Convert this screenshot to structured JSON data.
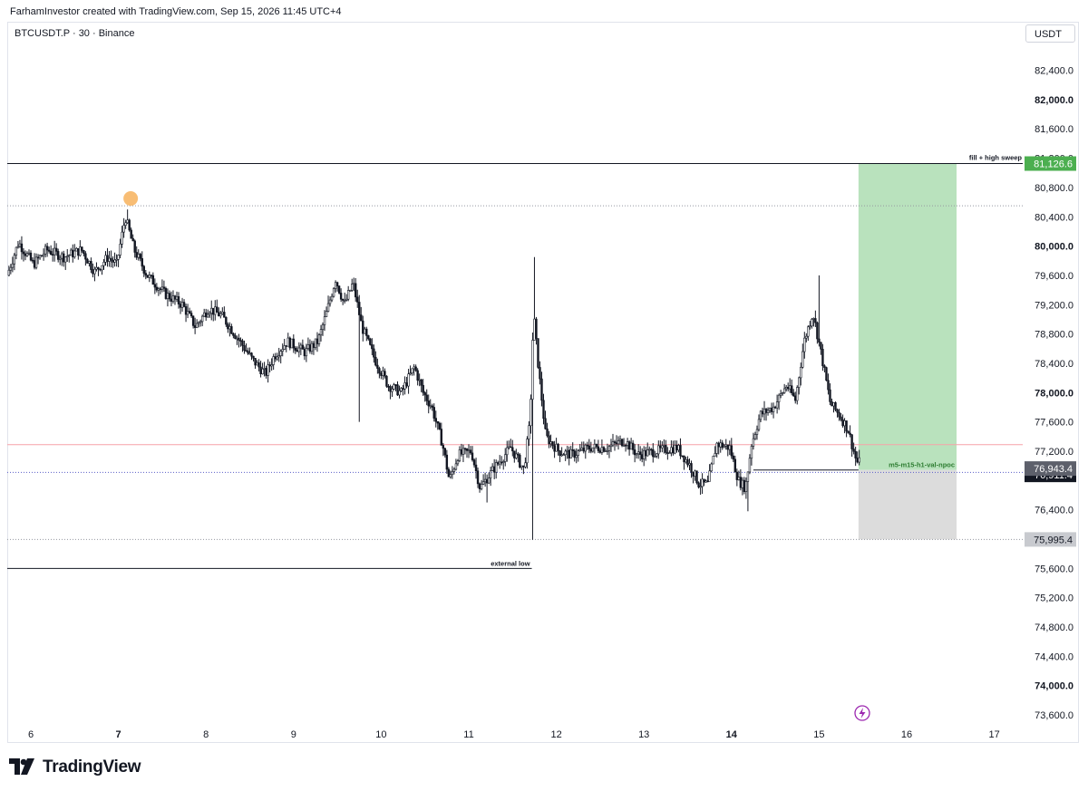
{
  "header": {
    "title": "FarhamInvestor created with TradingView.com, Sep 15, 2026 11:45 UTC+4"
  },
  "symbol": {
    "label": "BTCUSDT.P · 30 · Binance"
  },
  "currency_button": {
    "label": "USDT"
  },
  "brand": {
    "name": "TradingView",
    "icon": "tradingview-logo-icon"
  },
  "colors": {
    "up": "#ffffff",
    "down": "#131722",
    "wick": "#131722",
    "target_zone": "#b9e2bd",
    "stop_zone": "#dcdcdc",
    "target_label": "#4caf50",
    "red_line": "#f7a1a8",
    "dotted": "#9598a1",
    "highlight": "#f7b15c",
    "lightning": "#9c27b0"
  },
  "chart_data": {
    "type": "candlestick",
    "title": "",
    "ylim": [
      73400,
      82800
    ],
    "xlim": [
      5.75,
      17.3
    ],
    "y_ticks": [
      {
        "value": 82400,
        "label": "82,400.0",
        "bold": false
      },
      {
        "value": 82000,
        "label": "82,000.0",
        "bold": true
      },
      {
        "value": 81600,
        "label": "81,600.0",
        "bold": false
      },
      {
        "value": 81200,
        "label": "81,200.0",
        "bold": false
      },
      {
        "value": 80800,
        "label": "80,800.0",
        "bold": false
      },
      {
        "value": 80400,
        "label": "80,400.0",
        "bold": false
      },
      {
        "value": 80000,
        "label": "80,000.0",
        "bold": true
      },
      {
        "value": 79600,
        "label": "79,600.0",
        "bold": false
      },
      {
        "value": 79200,
        "label": "79,200.0",
        "bold": false
      },
      {
        "value": 78800,
        "label": "78,800.0",
        "bold": false
      },
      {
        "value": 78400,
        "label": "78,400.0",
        "bold": false
      },
      {
        "value": 78000,
        "label": "78,000.0",
        "bold": true
      },
      {
        "value": 77600,
        "label": "77,600.0",
        "bold": false
      },
      {
        "value": 77200,
        "label": "77,200.0",
        "bold": false
      },
      {
        "value": 76400,
        "label": "76,400.0",
        "bold": false
      },
      {
        "value": 75600,
        "label": "75,600.0",
        "bold": false
      },
      {
        "value": 75200,
        "label": "75,200.0",
        "bold": false
      },
      {
        "value": 74800,
        "label": "74,800.0",
        "bold": false
      },
      {
        "value": 74400,
        "label": "74,400.0",
        "bold": false
      },
      {
        "value": 74000,
        "label": "74,000.0",
        "bold": true
      },
      {
        "value": 73600,
        "label": "73,600.0",
        "bold": false
      }
    ],
    "x_ticks": [
      {
        "value": 6,
        "label": "6",
        "bold": false
      },
      {
        "value": 7,
        "label": "7",
        "bold": true
      },
      {
        "value": 8,
        "label": "8",
        "bold": false
      },
      {
        "value": 9,
        "label": "9",
        "bold": false
      },
      {
        "value": 10,
        "label": "10",
        "bold": false
      },
      {
        "value": 11,
        "label": "11",
        "bold": false
      },
      {
        "value": 12,
        "label": "12",
        "bold": false
      },
      {
        "value": 13,
        "label": "13",
        "bold": false
      },
      {
        "value": 14,
        "label": "14",
        "bold": true
      },
      {
        "value": 15,
        "label": "15",
        "bold": false
      },
      {
        "value": 16,
        "label": "16",
        "bold": false
      },
      {
        "value": 17,
        "label": "17",
        "bold": false
      }
    ],
    "anchors": [
      [
        5.75,
        79600
      ],
      [
        5.88,
        80050
      ],
      [
        6.05,
        79750
      ],
      [
        6.2,
        79950
      ],
      [
        6.4,
        79850
      ],
      [
        6.6,
        79950
      ],
      [
        6.75,
        79650
      ],
      [
        6.9,
        79850
      ],
      [
        7.0,
        79750
      ],
      [
        7.1,
        80400
      ],
      [
        7.2,
        79950
      ],
      [
        7.35,
        79600
      ],
      [
        7.55,
        79350
      ],
      [
        7.75,
        79200
      ],
      [
        7.9,
        78900
      ],
      [
        8.05,
        79150
      ],
      [
        8.2,
        79050
      ],
      [
        8.35,
        78800
      ],
      [
        8.55,
        78450
      ],
      [
        8.7,
        78250
      ],
      [
        8.8,
        78500
      ],
      [
        8.95,
        78700
      ],
      [
        9.15,
        78550
      ],
      [
        9.3,
        78700
      ],
      [
        9.4,
        79100
      ],
      [
        9.5,
        79550
      ],
      [
        9.6,
        79200
      ],
      [
        9.7,
        79500
      ],
      [
        9.8,
        78900
      ],
      [
        9.95,
        78450
      ],
      [
        10.1,
        78100
      ],
      [
        10.25,
        78000
      ],
      [
        10.4,
        78350
      ],
      [
        10.5,
        78000
      ],
      [
        10.6,
        77800
      ],
      [
        10.72,
        77300
      ],
      [
        10.8,
        76800
      ],
      [
        10.9,
        77150
      ],
      [
        11.05,
        77200
      ],
      [
        11.15,
        76700
      ],
      [
        11.3,
        76950
      ],
      [
        11.5,
        77250
      ],
      [
        11.65,
        76950
      ],
      [
        11.72,
        77600
      ],
      [
        11.76,
        79100
      ],
      [
        11.82,
        78300
      ],
      [
        11.9,
        77400
      ],
      [
        12.05,
        77200
      ],
      [
        12.2,
        77150
      ],
      [
        12.4,
        77250
      ],
      [
        12.6,
        77250
      ],
      [
        12.8,
        77350
      ],
      [
        12.95,
        77150
      ],
      [
        13.15,
        77200
      ],
      [
        13.4,
        77250
      ],
      [
        13.55,
        77000
      ],
      [
        13.65,
        76750
      ],
      [
        13.75,
        76750
      ],
      [
        13.85,
        77300
      ],
      [
        14.0,
        77250
      ],
      [
        14.1,
        76800
      ],
      [
        14.18,
        76700
      ],
      [
        14.25,
        77300
      ],
      [
        14.35,
        77700
      ],
      [
        14.5,
        77800
      ],
      [
        14.65,
        78100
      ],
      [
        14.75,
        77900
      ],
      [
        14.85,
        78700
      ],
      [
        14.95,
        79100
      ],
      [
        15.05,
        78500
      ],
      [
        15.15,
        77850
      ],
      [
        15.25,
        77700
      ],
      [
        15.35,
        77500
      ],
      [
        15.45,
        77050
      ]
    ],
    "spikes": [
      {
        "x": 7.1,
        "high": 80500
      },
      {
        "x": 11.75,
        "high": 79850
      },
      {
        "x": 11.72,
        "low": 75990
      },
      {
        "x": 15.0,
        "high": 79600
      },
      {
        "x": 14.18,
        "low": 76380
      },
      {
        "x": 11.2,
        "low": 76500
      },
      {
        "x": 9.75,
        "low": 77600
      }
    ],
    "levels": {
      "target": {
        "value": 81126.6,
        "label": "81,126.6"
      },
      "entry": {
        "value": 76943.4,
        "label": "76,943.4"
      },
      "current": {
        "value": 76911.4,
        "label": "76,911.4"
      },
      "stop": {
        "value": 75995.4,
        "label": "75,995.4"
      },
      "red_line": 77290,
      "dotted_high": 80550,
      "external_low": 75600
    },
    "position_box": {
      "x_start": 15.45,
      "x_end": 16.57
    },
    "highlight_point": {
      "x": 7.14,
      "y": 80650
    },
    "npoc_line": {
      "x_start": 14.25,
      "x_end": 15.45
    },
    "annotations": {
      "fill_high_sweep": "fill + high sweep",
      "external_low": "external low",
      "npoc": "m5-m15-h1-val-npoc"
    }
  }
}
